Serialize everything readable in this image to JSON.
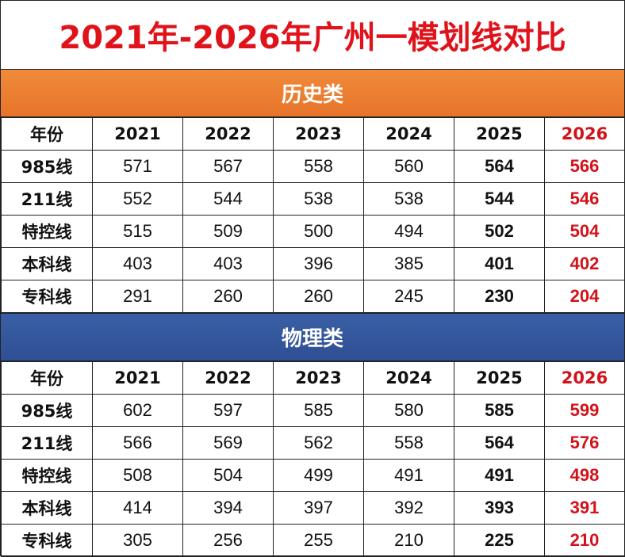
{
  "title": "2021年-2026年广州一模划线对比",
  "colors": {
    "title": "#e0121a",
    "history_band": "#ec7c30",
    "physics_band": "#2f5597",
    "highlight": "#d3121a"
  },
  "columns": [
    "年份",
    "2021",
    "2022",
    "2023",
    "2024",
    "2025",
    "2026"
  ],
  "sections": [
    {
      "name": "历史类",
      "rows": [
        {
          "label": "985线",
          "values": [
            "571",
            "567",
            "558",
            "560",
            "564",
            "566"
          ]
        },
        {
          "label": "211线",
          "values": [
            "552",
            "544",
            "538",
            "538",
            "544",
            "546"
          ]
        },
        {
          "label": "特控线",
          "values": [
            "515",
            "509",
            "500",
            "494",
            "502",
            "504"
          ]
        },
        {
          "label": "本科线",
          "values": [
            "403",
            "403",
            "396",
            "385",
            "401",
            "402"
          ]
        },
        {
          "label": "专科线",
          "values": [
            "291",
            "260",
            "260",
            "245",
            "230",
            "204"
          ]
        }
      ]
    },
    {
      "name": "物理类",
      "rows": [
        {
          "label": "985线",
          "values": [
            "602",
            "597",
            "585",
            "580",
            "585",
            "599"
          ]
        },
        {
          "label": "211线",
          "values": [
            "566",
            "569",
            "562",
            "558",
            "564",
            "576"
          ]
        },
        {
          "label": "特控线",
          "values": [
            "508",
            "504",
            "499",
            "491",
            "491",
            "498"
          ]
        },
        {
          "label": "本科线",
          "values": [
            "414",
            "394",
            "397",
            "392",
            "393",
            "391"
          ]
        },
        {
          "label": "专科线",
          "values": [
            "305",
            "256",
            "255",
            "210",
            "225",
            "210"
          ]
        }
      ]
    }
  ]
}
